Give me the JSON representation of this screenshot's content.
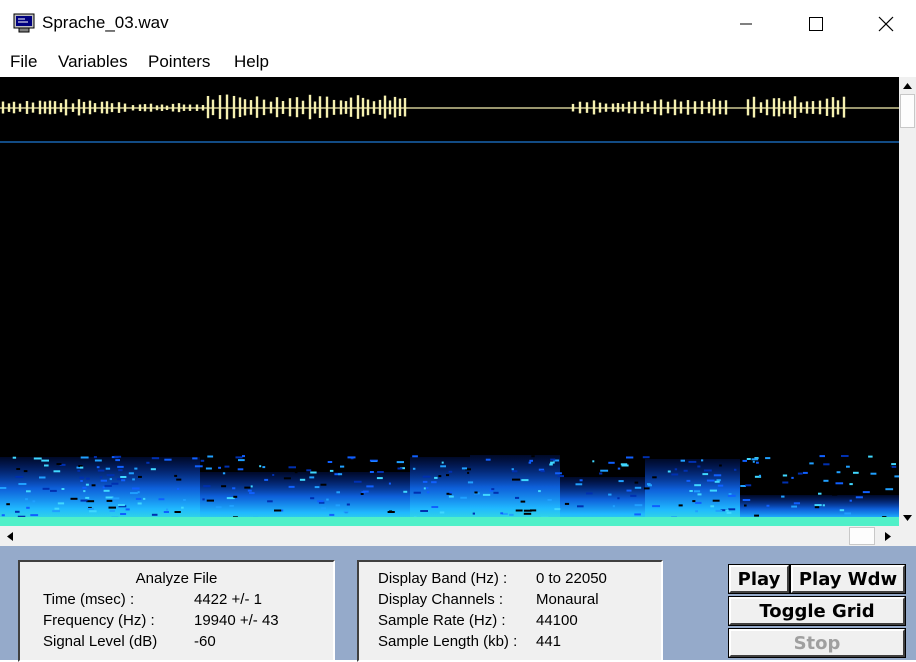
{
  "window": {
    "title": "Sprache_03.wav"
  },
  "menu": [
    "File",
    "Variables",
    "Pointers",
    "Help"
  ],
  "analyze": {
    "heading": "Analyze File",
    "rows": [
      {
        "label": "Time (msec) :",
        "value": "4422 +/- 1"
      },
      {
        "label": "Frequency (Hz) :",
        "value": "19940 +/- 43"
      },
      {
        "label": "Signal Level (dB)",
        "value": "-60"
      }
    ]
  },
  "display_info": {
    "rows": [
      {
        "label": "Display Band (Hz) :",
        "value": "0 to 22050"
      },
      {
        "label": "Display Channels :",
        "value": "Monaural"
      },
      {
        "label": "Sample Rate (Hz) :",
        "value": "44100"
      },
      {
        "label": "Sample Length (kb) :",
        "value": "441"
      }
    ]
  },
  "buttons": {
    "play": "Play",
    "play_window": "Play Wdw",
    "toggle_grid": "Toggle Grid",
    "stop": "Stop"
  },
  "colors": {
    "waveform": "#f5f0b0",
    "cursor_line": "#1e78d2",
    "panel_background": "#95aaca"
  }
}
